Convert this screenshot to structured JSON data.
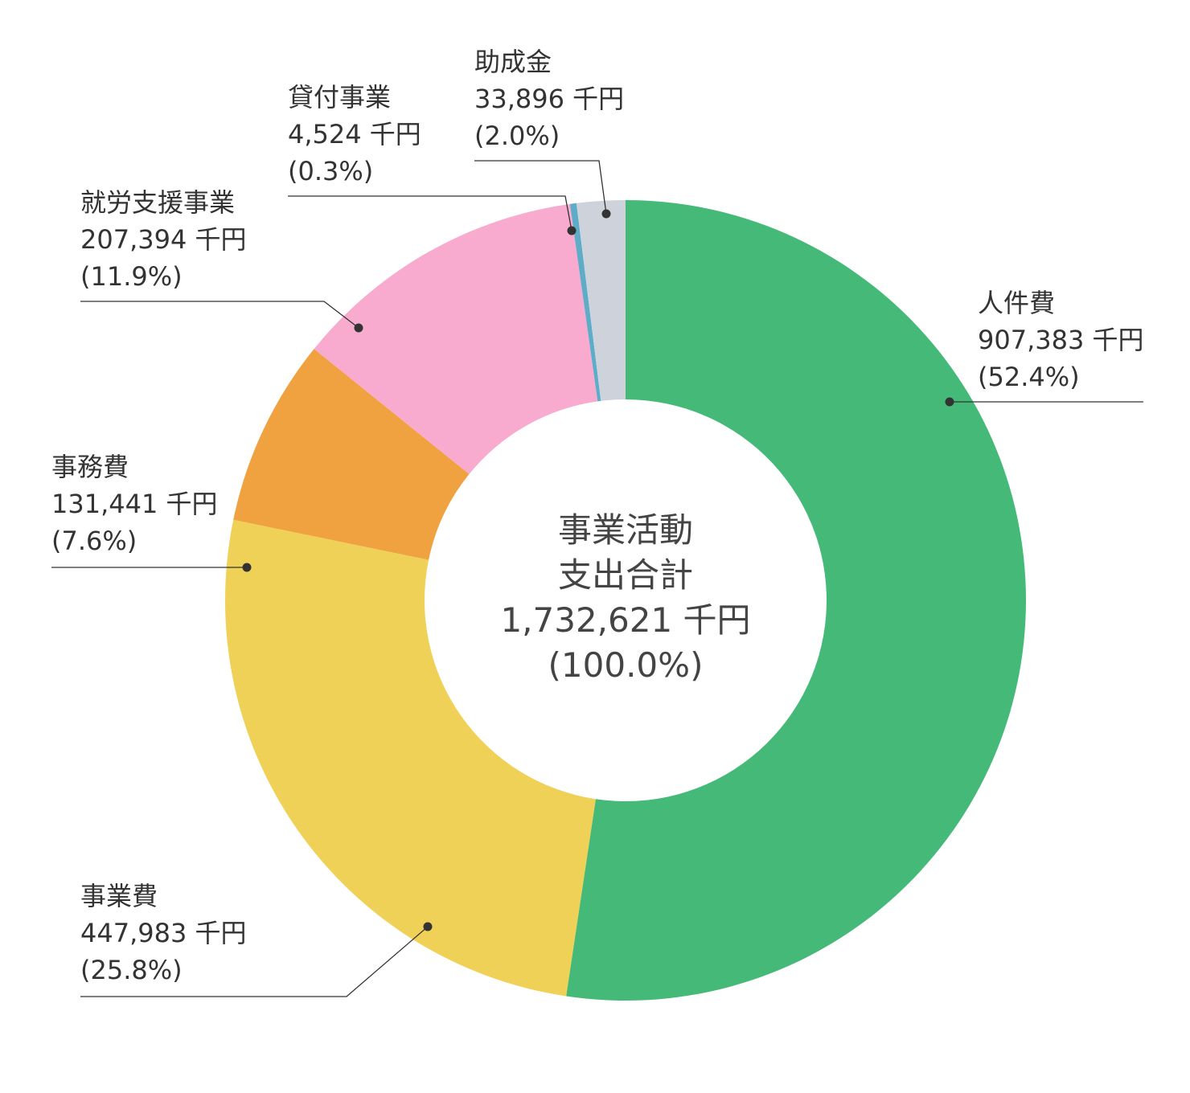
{
  "chart_data": {
    "type": "pie",
    "variant": "donut",
    "unit": "千円",
    "total": {
      "line1": "事業活動",
      "line2": "支出合計",
      "value": "1,732,621 千円",
      "percent": "(100.0%)"
    },
    "slices": [
      {
        "name": "人件費",
        "value": 907383,
        "value_label": "907,383 千円",
        "percent": 52.4,
        "percent_label": "(52.4%)",
        "color": "#45BA78"
      },
      {
        "name": "事業費",
        "value": 447983,
        "value_label": "447,983 千円",
        "percent": 25.8,
        "percent_label": "(25.8%)",
        "color": "#F0D158"
      },
      {
        "name": "事務費",
        "value": 131441,
        "value_label": "131,441 千円",
        "percent": 7.6,
        "percent_label": "(7.6%)",
        "color": "#F0A140"
      },
      {
        "name": "就労支援事業",
        "value": 207394,
        "value_label": "207,394 千円",
        "percent": 11.9,
        "percent_label": "(11.9%)",
        "color": "#F8ABCF"
      },
      {
        "name": "貸付事業",
        "value": 4524,
        "value_label": "4,524 千円",
        "percent": 0.3,
        "percent_label": "(0.3%)",
        "color": "#5DADC9"
      },
      {
        "name": "助成金",
        "value": 33896,
        "value_label": "33,896 千円",
        "percent": 2.0,
        "percent_label": "(2.0%)",
        "color": "#CED3DB"
      }
    ]
  }
}
